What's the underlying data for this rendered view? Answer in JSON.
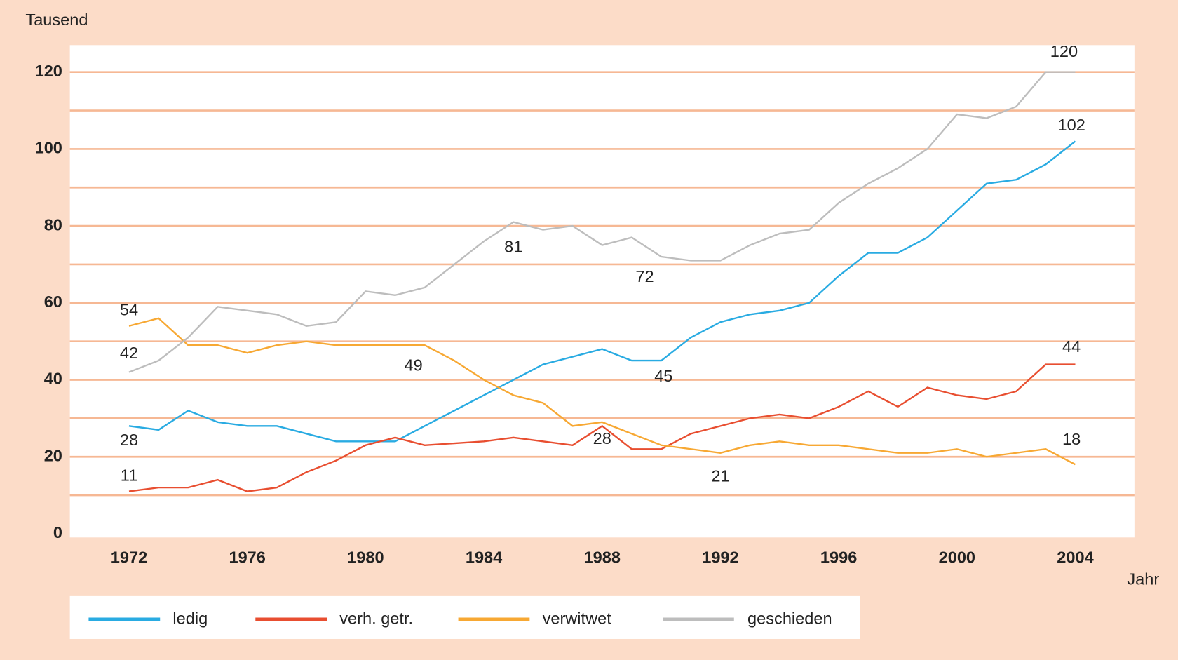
{
  "chart_data": {
    "type": "line",
    "y_label": "Tausend",
    "x_label": "Jahr",
    "x": [
      1972,
      1973,
      1974,
      1975,
      1976,
      1977,
      1978,
      1979,
      1980,
      1981,
      1982,
      1983,
      1984,
      1985,
      1986,
      1987,
      1988,
      1989,
      1990,
      1991,
      1992,
      1993,
      1994,
      1995,
      1996,
      1997,
      1998,
      1999,
      2000,
      2001,
      2002,
      2003,
      2004
    ],
    "series": [
      {
        "name": "ledig",
        "color": "#29abe2",
        "values": [
          28,
          27,
          32,
          29,
          28,
          28,
          26,
          24,
          24,
          24,
          28,
          32,
          36,
          40,
          44,
          46,
          48,
          45,
          45,
          51,
          55,
          57,
          58,
          60,
          67,
          73,
          73,
          77,
          84,
          91,
          92,
          96,
          102
        ]
      },
      {
        "name": "verh. getr.",
        "color": "#e84e30",
        "values": [
          11,
          12,
          12,
          14,
          11,
          12,
          16,
          19,
          23,
          25,
          23,
          23.5,
          24,
          25,
          24,
          23,
          28,
          22,
          22,
          26,
          28,
          30,
          31,
          30,
          33,
          37,
          33,
          38,
          36,
          35,
          37,
          44,
          44
        ]
      },
      {
        "name": "verwitwet",
        "color": "#f7a833",
        "values": [
          54,
          56,
          49,
          49,
          47,
          49,
          50,
          49,
          49,
          49,
          49,
          45,
          40,
          36,
          34,
          28,
          29,
          26,
          23,
          22,
          21,
          23,
          24,
          23,
          23,
          22,
          21,
          21,
          22,
          20,
          21,
          22,
          18
        ]
      },
      {
        "name": "geschieden",
        "color": "#bdbdbd",
        "values": [
          42,
          45,
          51,
          59,
          58,
          57,
          54,
          55,
          63,
          62,
          64,
          70,
          76,
          81,
          79,
          80,
          75,
          77,
          72,
          71,
          71,
          75,
          78,
          79,
          86,
          91,
          95,
          100,
          109,
          108,
          111,
          120,
          120
        ]
      }
    ],
    "xlim": [
      1970,
      2006
    ],
    "xticks": [
      1972,
      1976,
      1980,
      1984,
      1988,
      1992,
      1996,
      2000,
      2004
    ],
    "ylim": [
      0,
      127
    ],
    "yticks": [
      0,
      20,
      40,
      60,
      80,
      100,
      120
    ],
    "y_minor_grid": [
      10,
      30,
      50,
      70,
      90,
      110
    ],
    "grid": true,
    "grid_color": "#f6b894",
    "legend": "bottom"
  }
}
